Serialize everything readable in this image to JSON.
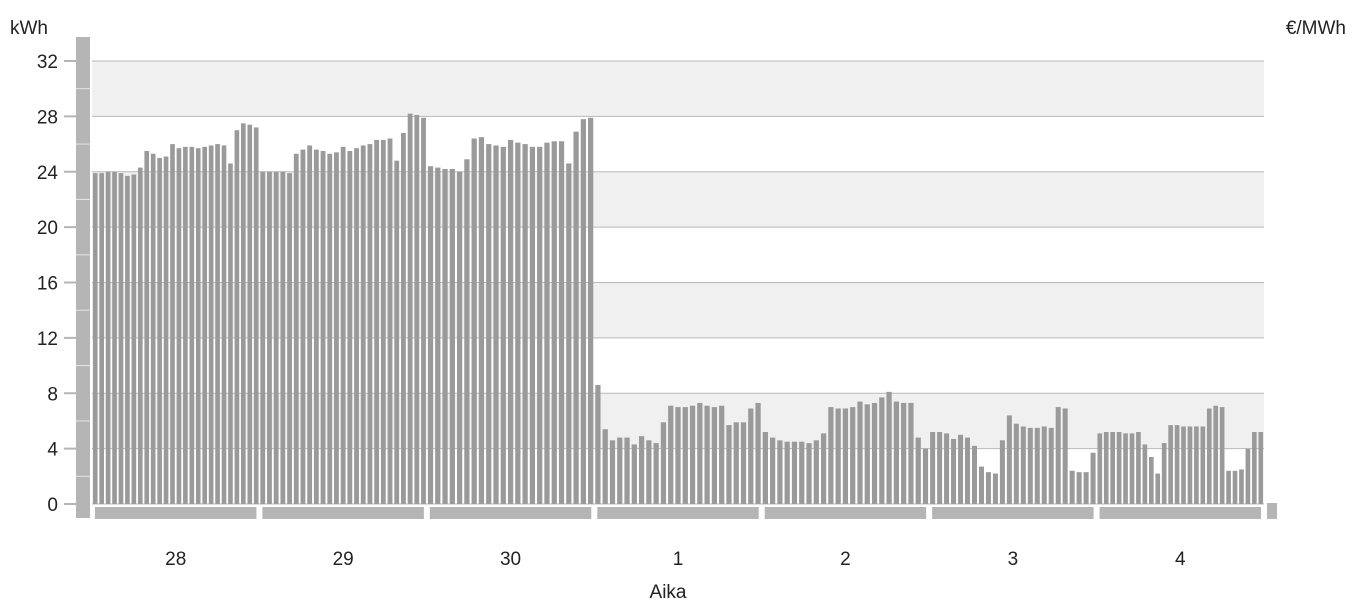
{
  "chart_data": {
    "type": "bar",
    "ylabel": "kWh",
    "y2label": "€/MWh",
    "xlabel": "Aika",
    "ylim": [
      0,
      34
    ],
    "yticks": [
      0,
      4,
      8,
      12,
      16,
      20,
      24,
      28,
      32
    ],
    "grid": true,
    "categories": [
      "28",
      "29",
      "30",
      "1",
      "2",
      "3",
      "4"
    ],
    "series": [
      {
        "values": [
          [
            23.9,
            23.9,
            24.0,
            24.0,
            23.9,
            23.7,
            23.8,
            24.3,
            25.5,
            25.3,
            25.0,
            25.1,
            26.0,
            25.7,
            25.8,
            25.8,
            25.7,
            25.8,
            25.9,
            26.0,
            25.9,
            24.6,
            27.0,
            27.5,
            27.4,
            27.2
          ],
          [
            24.0,
            24.0,
            24.0,
            24.0,
            23.9,
            25.3,
            25.6,
            25.9,
            25.6,
            25.5,
            25.3,
            25.4,
            25.8,
            25.5,
            25.7,
            25.9,
            26.0,
            26.3,
            26.3,
            26.4,
            24.8,
            26.8,
            28.2,
            28.1,
            27.9
          ],
          [
            24.4,
            24.3,
            24.2,
            24.2,
            24.0,
            24.9,
            26.4,
            26.5,
            26.0,
            25.9,
            25.8,
            26.3,
            26.1,
            26.0,
            25.8,
            25.8,
            26.1,
            26.2,
            26.2,
            24.6,
            26.9,
            27.8,
            27.9
          ],
          [
            8.6,
            5.4,
            4.6,
            4.8,
            4.8,
            4.3,
            4.9,
            4.6,
            4.4,
            5.9,
            7.1,
            7.0,
            7.0,
            7.1,
            7.3,
            7.1,
            7.0,
            7.1,
            5.7,
            5.9,
            5.9,
            6.9,
            7.3
          ],
          [
            5.2,
            4.8,
            4.6,
            4.5,
            4.5,
            4.5,
            4.4,
            4.6,
            5.1,
            7.0,
            6.9,
            6.9,
            7.0,
            7.4,
            7.2,
            7.3,
            7.7,
            8.1,
            7.4,
            7.3,
            7.3,
            4.8,
            4.0
          ],
          [
            5.2,
            5.2,
            5.1,
            4.7,
            5.0,
            4.8,
            4.2,
            2.7,
            2.3,
            2.2,
            4.6,
            6.4,
            5.8,
            5.6,
            5.5,
            5.5,
            5.6,
            5.5,
            7.0,
            6.9,
            2.4,
            2.3,
            2.3,
            3.7
          ],
          [
            5.1,
            5.2,
            5.2,
            5.2,
            5.1,
            5.1,
            5.2,
            4.3,
            3.4,
            2.2,
            4.4,
            5.7,
            5.7,
            5.6,
            5.6,
            5.6,
            5.6,
            6.9,
            7.1,
            7.0,
            2.4,
            2.4,
            2.5,
            4.0,
            5.2,
            5.2
          ]
        ]
      }
    ],
    "colors": {
      "bar": "#9a9a9a",
      "bar_edge": "#7c7c7c",
      "band_shaded": "#f0f0f0",
      "gridline": "#b9b9b9",
      "axis": "#b5b5b5",
      "text": "#222222"
    }
  }
}
